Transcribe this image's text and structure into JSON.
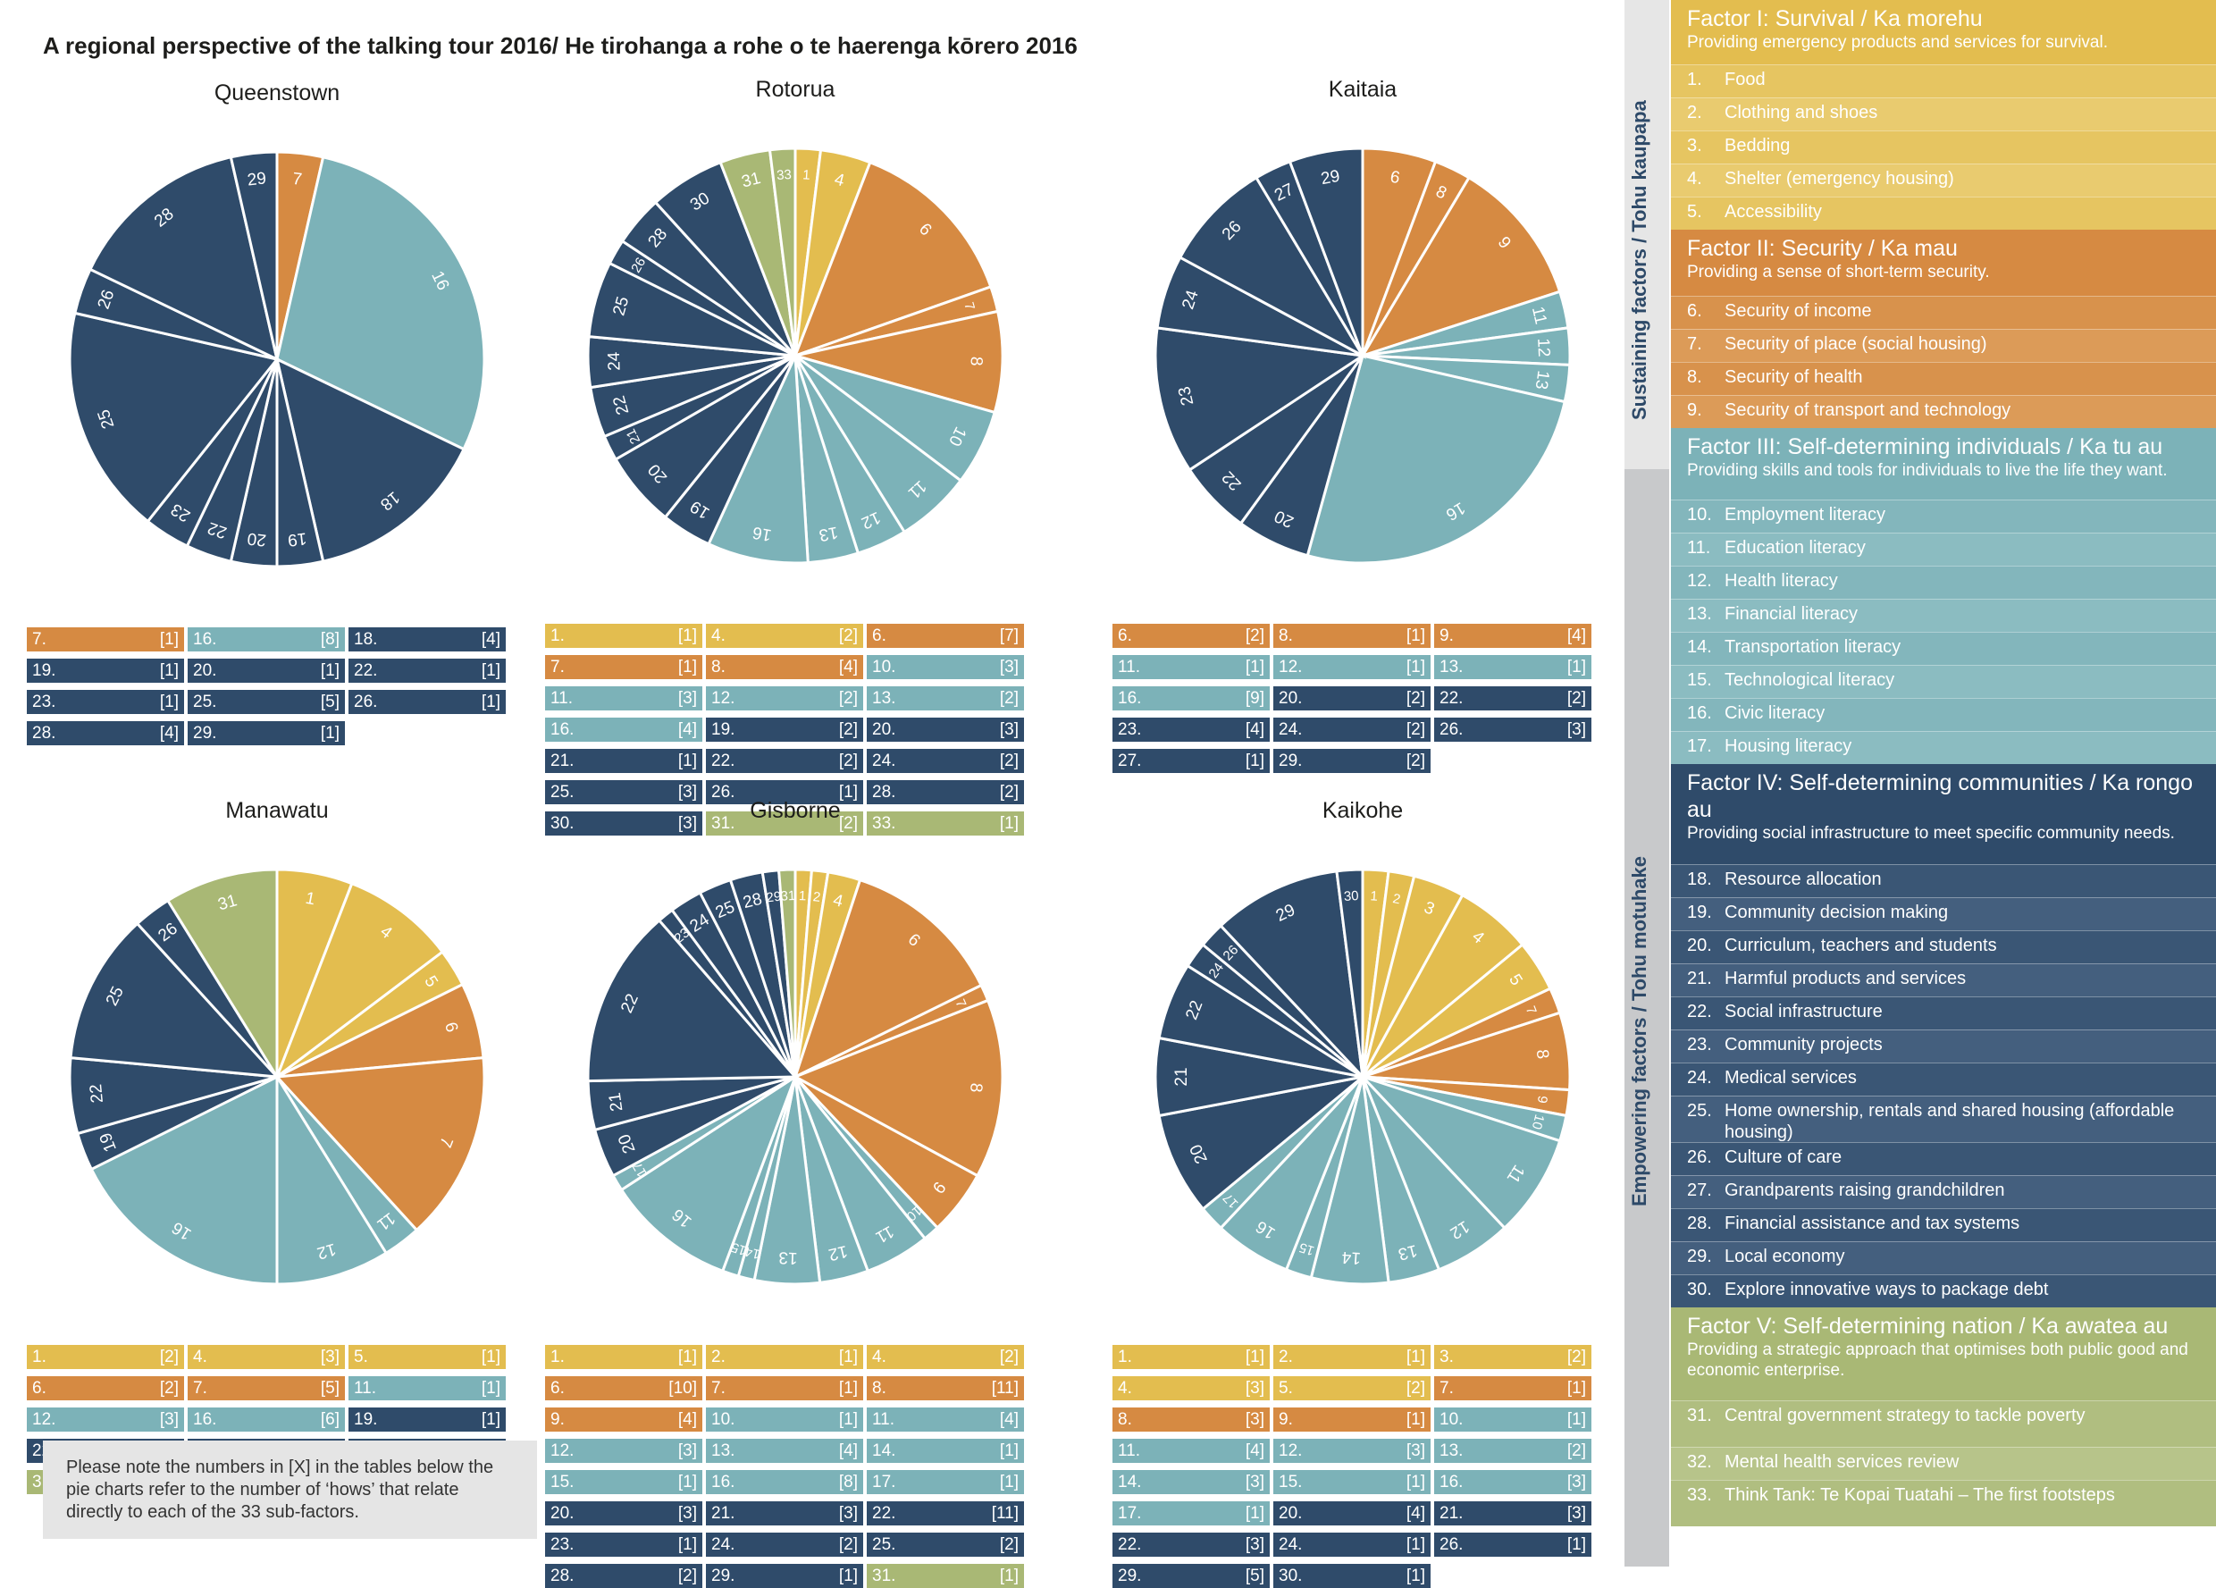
{
  "title": "A regional perspective of the talking tour 2016/ He tirohanga a rohe o te haerenga kōrero 2016",
  "note": "Please note the numbers in [X] in the tables below the pie charts refer to the number of ‘hows’ that relate directly to each of the 33 sub-factors.",
  "side_labels": {
    "sustaining": "Sustaining factors / Tohu kaupapa",
    "empowering": "Empowering factors / Tohu motuhake"
  },
  "colors": {
    "I": "#e3bd4f",
    "II": "#d68a42",
    "III": "#7cb2b8",
    "IV": "#2f4b6a",
    "V": "#a9b875",
    "I_row_a": "#e6c561",
    "I_row_b": "#e9cb6f",
    "II_row_a": "#d8924c",
    "II_row_b": "#dc9b58",
    "III_row_a": "#83b6bc",
    "III_row_b": "#8bbcc1",
    "IV_row_a": "#3a5675",
    "IV_row_b": "#445f7e",
    "V_row_a": "#b0be80",
    "V_row_b": "#b7c48a",
    "pie_light": "#b3c08a"
  },
  "factors": [
    {
      "id": "I",
      "title": "Factor I: Survival / Ka morehu",
      "desc": "Providing emergency products and services for survival.",
      "items": [
        {
          "n": "1.",
          "label": "Food"
        },
        {
          "n": "2.",
          "label": "Clothing and shoes"
        },
        {
          "n": "3.",
          "label": "Bedding"
        },
        {
          "n": "4.",
          "label": "Shelter (emergency housing)"
        },
        {
          "n": "5.",
          "label": "Accessibility"
        }
      ]
    },
    {
      "id": "II",
      "title": "Factor II: Security / Ka mau",
      "desc": "Providing a sense of short-term security.",
      "items": [
        {
          "n": "6.",
          "label": "Security of income"
        },
        {
          "n": "7.",
          "label": "Security of place (social housing)"
        },
        {
          "n": "8.",
          "label": "Security of health"
        },
        {
          "n": "9.",
          "label": "Security of transport and technology"
        }
      ]
    },
    {
      "id": "III",
      "title": "Factor III: Self-determining individuals / Ka tu au",
      "desc": "Providing skills and tools for individuals to live the life they want.",
      "items": [
        {
          "n": "10.",
          "label": "Employment literacy"
        },
        {
          "n": "11.",
          "label": "Education literacy"
        },
        {
          "n": "12.",
          "label": "Health literacy"
        },
        {
          "n": "13.",
          "label": "Financial literacy"
        },
        {
          "n": "14.",
          "label": "Transportation literacy"
        },
        {
          "n": "15.",
          "label": "Technological literacy"
        },
        {
          "n": "16.",
          "label": "Civic literacy"
        },
        {
          "n": "17.",
          "label": "Housing literacy"
        }
      ]
    },
    {
      "id": "IV",
      "title": "Factor IV: Self-determining communities / Ka rongo au",
      "desc": "Providing social infrastructure to meet specific community needs.",
      "items": [
        {
          "n": "18.",
          "label": "Resource allocation"
        },
        {
          "n": "19.",
          "label": "Community decision making"
        },
        {
          "n": "20.",
          "label": "Curriculum, teachers and students"
        },
        {
          "n": "21.",
          "label": "Harmful products and services"
        },
        {
          "n": "22.",
          "label": "Social infrastructure"
        },
        {
          "n": "23.",
          "label": "Community projects"
        },
        {
          "n": "24.",
          "label": "Medical services"
        },
        {
          "n": "25.",
          "label": "Home ownership, rentals and shared housing (affordable housing)"
        },
        {
          "n": "26.",
          "label": "Culture of care"
        },
        {
          "n": "27.",
          "label": "Grandparents raising grandchildren"
        },
        {
          "n": "28.",
          "label": "Financial assistance and tax systems"
        },
        {
          "n": "29.",
          "label": "Local economy"
        },
        {
          "n": "30.",
          "label": "Explore innovative ways to package debt"
        }
      ]
    },
    {
      "id": "V",
      "title": "Factor V: Self-determining nation / Ka awatea au",
      "desc": "Providing a strategic approach that optimises both public good and economic enterprise.",
      "items": [
        {
          "n": "31.",
          "label": "Central government strategy to tackle poverty"
        },
        {
          "n": "32.",
          "label": "Mental health services review"
        },
        {
          "n": "33.",
          "label": "Think Tank: Te Kopai Tuatahi – The first footsteps"
        }
      ]
    }
  ],
  "chart_data": [
    {
      "type": "pie",
      "title": "Queenstown",
      "slices": [
        {
          "k": 7,
          "v": 1
        },
        {
          "k": 16,
          "v": 8
        },
        {
          "k": 18,
          "v": 4
        },
        {
          "k": 19,
          "v": 1
        },
        {
          "k": 20,
          "v": 1
        },
        {
          "k": 22,
          "v": 1
        },
        {
          "k": 23,
          "v": 1
        },
        {
          "k": 25,
          "v": 5
        },
        {
          "k": 26,
          "v": 1
        },
        {
          "k": 28,
          "v": 4
        },
        {
          "k": 29,
          "v": 1
        }
      ]
    },
    {
      "type": "pie",
      "title": "Rotorua",
      "slices": [
        {
          "k": 1,
          "v": 1
        },
        {
          "k": 4,
          "v": 2
        },
        {
          "k": 6,
          "v": 7
        },
        {
          "k": 7,
          "v": 1
        },
        {
          "k": 8,
          "v": 4
        },
        {
          "k": 10,
          "v": 3
        },
        {
          "k": 11,
          "v": 3
        },
        {
          "k": 12,
          "v": 2
        },
        {
          "k": 13,
          "v": 2
        },
        {
          "k": 16,
          "v": 4
        },
        {
          "k": 19,
          "v": 2
        },
        {
          "k": 20,
          "v": 3
        },
        {
          "k": 21,
          "v": 1
        },
        {
          "k": 22,
          "v": 2
        },
        {
          "k": 24,
          "v": 2
        },
        {
          "k": 25,
          "v": 3
        },
        {
          "k": 26,
          "v": 1
        },
        {
          "k": 28,
          "v": 2
        },
        {
          "k": 30,
          "v": 3
        },
        {
          "k": 31,
          "v": 2
        },
        {
          "k": 33,
          "v": 1
        }
      ]
    },
    {
      "type": "pie",
      "title": "Kaitaia",
      "slices": [
        {
          "k": 6,
          "v": 2
        },
        {
          "k": 8,
          "v": 1
        },
        {
          "k": 9,
          "v": 4
        },
        {
          "k": 11,
          "v": 1
        },
        {
          "k": 12,
          "v": 1
        },
        {
          "k": 13,
          "v": 1
        },
        {
          "k": 16,
          "v": 9
        },
        {
          "k": 20,
          "v": 2
        },
        {
          "k": 22,
          "v": 2
        },
        {
          "k": 23,
          "v": 4
        },
        {
          "k": 24,
          "v": 2
        },
        {
          "k": 26,
          "v": 3
        },
        {
          "k": 27,
          "v": 1
        },
        {
          "k": 29,
          "v": 2
        }
      ]
    },
    {
      "type": "pie",
      "title": "Manawatu",
      "slices": [
        {
          "k": 1,
          "v": 2
        },
        {
          "k": 4,
          "v": 3
        },
        {
          "k": 5,
          "v": 1
        },
        {
          "k": 6,
          "v": 2
        },
        {
          "k": 7,
          "v": 5
        },
        {
          "k": 11,
          "v": 1
        },
        {
          "k": 12,
          "v": 3
        },
        {
          "k": 16,
          "v": 6
        },
        {
          "k": 19,
          "v": 1
        },
        {
          "k": 22,
          "v": 2
        },
        {
          "k": 25,
          "v": 4
        },
        {
          "k": 26,
          "v": 1
        },
        {
          "k": 31,
          "v": 3
        }
      ]
    },
    {
      "type": "pie",
      "title": "Gisborne",
      "slices": [
        {
          "k": 1,
          "v": 1
        },
        {
          "k": 2,
          "v": 1
        },
        {
          "k": 4,
          "v": 2
        },
        {
          "k": 6,
          "v": 10
        },
        {
          "k": 7,
          "v": 1
        },
        {
          "k": 8,
          "v": 11
        },
        {
          "k": 9,
          "v": 4
        },
        {
          "k": 10,
          "v": 1
        },
        {
          "k": 11,
          "v": 4
        },
        {
          "k": 12,
          "v": 3
        },
        {
          "k": 13,
          "v": 4
        },
        {
          "k": 14,
          "v": 1
        },
        {
          "k": 15,
          "v": 1
        },
        {
          "k": 16,
          "v": 8
        },
        {
          "k": 17,
          "v": 1
        },
        {
          "k": 20,
          "v": 3
        },
        {
          "k": 21,
          "v": 3
        },
        {
          "k": 22,
          "v": 11
        },
        {
          "k": 23,
          "v": 1
        },
        {
          "k": 24,
          "v": 2
        },
        {
          "k": 25,
          "v": 2
        },
        {
          "k": 28,
          "v": 2
        },
        {
          "k": 29,
          "v": 1
        },
        {
          "k": 31,
          "v": 1
        }
      ]
    },
    {
      "type": "pie",
      "title": "Kaikohe",
      "slices": [
        {
          "k": 1,
          "v": 1
        },
        {
          "k": 2,
          "v": 1
        },
        {
          "k": 3,
          "v": 2
        },
        {
          "k": 4,
          "v": 3
        },
        {
          "k": 5,
          "v": 2
        },
        {
          "k": 7,
          "v": 1
        },
        {
          "k": 8,
          "v": 3
        },
        {
          "k": 9,
          "v": 1
        },
        {
          "k": 10,
          "v": 1
        },
        {
          "k": 11,
          "v": 4
        },
        {
          "k": 12,
          "v": 3
        },
        {
          "k": 13,
          "v": 2
        },
        {
          "k": 14,
          "v": 3
        },
        {
          "k": 15,
          "v": 1
        },
        {
          "k": 16,
          "v": 3
        },
        {
          "k": 17,
          "v": 1
        },
        {
          "k": 20,
          "v": 4
        },
        {
          "k": 21,
          "v": 3
        },
        {
          "k": 22,
          "v": 3
        },
        {
          "k": 24,
          "v": 1
        },
        {
          "k": 26,
          "v": 1
        },
        {
          "k": 29,
          "v": 5
        },
        {
          "k": 30,
          "v": 1
        }
      ]
    }
  ]
}
